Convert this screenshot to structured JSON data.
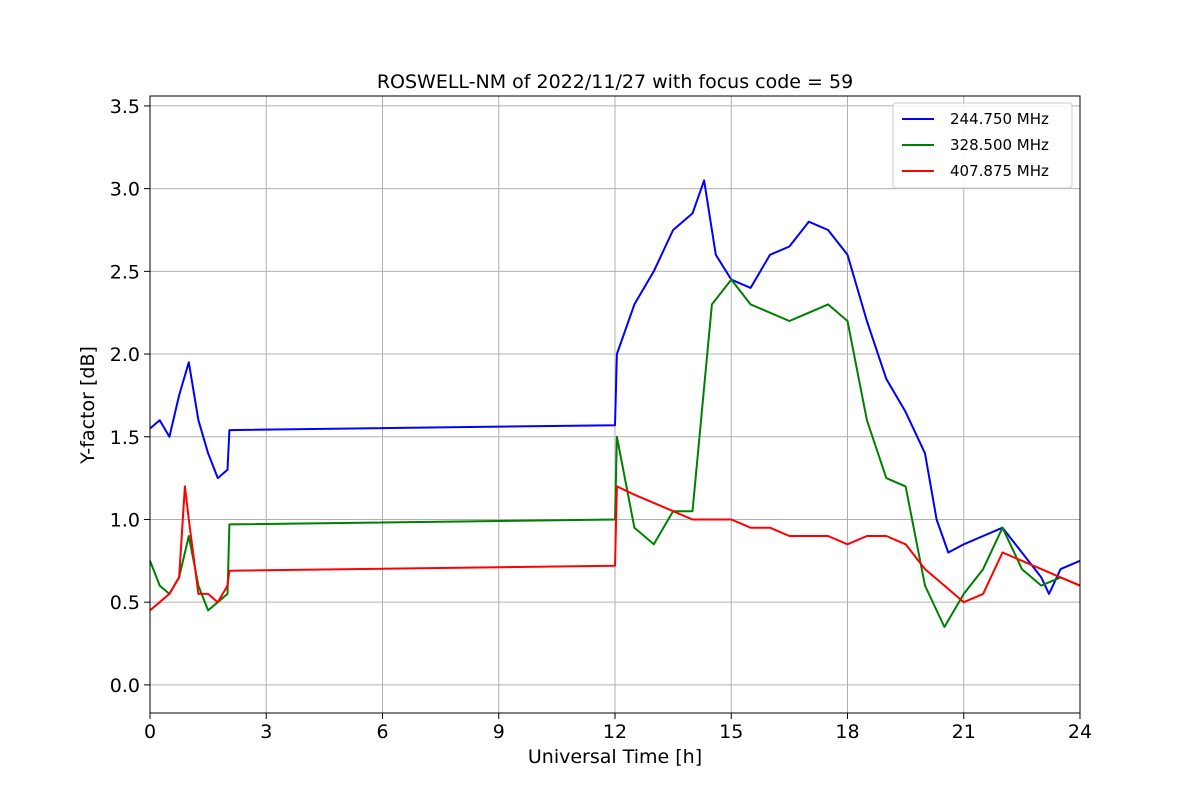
{
  "chart_data": {
    "type": "line",
    "title": "ROSWELL-NM of 2022/11/27 with focus code = 59",
    "xlabel": "Universal Time [h]",
    "ylabel": "Y-factor [dB]",
    "xlim": [
      0,
      24
    ],
    "ylim": [
      -0.17,
      3.56
    ],
    "xticks": [
      0,
      3,
      6,
      9,
      12,
      15,
      18,
      21,
      24
    ],
    "yticks": [
      0.0,
      0.5,
      1.0,
      1.5,
      2.0,
      2.5,
      3.0,
      3.5
    ],
    "xtick_labels": [
      "0",
      "3",
      "6",
      "9",
      "12",
      "15",
      "18",
      "21",
      "24"
    ],
    "ytick_labels": [
      "0.0",
      "0.5",
      "1.0",
      "1.5",
      "2.0",
      "2.5",
      "3.0",
      "3.5"
    ],
    "grid": true,
    "legend_position": "top-right",
    "series": [
      {
        "name": "244.750 MHz",
        "color": "#0000ff",
        "x": [
          0,
          0.25,
          0.5,
          0.75,
          1.0,
          1.25,
          1.5,
          1.75,
          2.0,
          2.05,
          12.0,
          12.05,
          12.5,
          13.0,
          13.5,
          14.0,
          14.3,
          14.6,
          15.0,
          15.5,
          16.0,
          16.5,
          17.0,
          17.5,
          18.0,
          18.5,
          19.0,
          19.5,
          20.0,
          20.3,
          20.6,
          21.0,
          21.5,
          22.0,
          22.5,
          23.0,
          23.2,
          23.5,
          24.0
        ],
        "y": [
          1.55,
          1.6,
          1.5,
          1.75,
          1.95,
          1.6,
          1.4,
          1.25,
          1.3,
          1.54,
          1.57,
          2.0,
          2.3,
          2.5,
          2.75,
          2.85,
          3.05,
          2.6,
          2.45,
          2.4,
          2.6,
          2.65,
          2.8,
          2.75,
          2.6,
          2.2,
          1.85,
          1.65,
          1.4,
          1.0,
          0.8,
          0.85,
          0.9,
          0.95,
          0.8,
          0.65,
          0.55,
          0.7,
          0.75
        ]
      },
      {
        "name": "328.500 MHz",
        "color": "#008000",
        "x": [
          0,
          0.25,
          0.5,
          0.75,
          1.0,
          1.25,
          1.5,
          1.75,
          2.0,
          2.05,
          12.0,
          12.05,
          12.5,
          13.0,
          13.5,
          14.0,
          14.5,
          15.0,
          15.5,
          16.0,
          16.5,
          17.0,
          17.5,
          18.0,
          18.5,
          19.0,
          19.5,
          20.0,
          20.5,
          21.0,
          21.5,
          22.0,
          22.5,
          23.0,
          23.5,
          24.0
        ],
        "y": [
          0.75,
          0.6,
          0.55,
          0.65,
          0.9,
          0.6,
          0.45,
          0.5,
          0.55,
          0.97,
          1.0,
          1.5,
          0.95,
          0.85,
          1.05,
          1.05,
          2.3,
          2.45,
          2.3,
          2.25,
          2.2,
          2.25,
          2.3,
          2.2,
          1.6,
          1.25,
          1.2,
          0.6,
          0.35,
          0.55,
          0.7,
          0.95,
          0.7,
          0.6,
          0.65,
          0.6
        ]
      },
      {
        "name": "407.875 MHz",
        "color": "#ff0000",
        "x": [
          0,
          0.25,
          0.5,
          0.75,
          0.9,
          1.0,
          1.25,
          1.5,
          1.75,
          2.0,
          2.05,
          12.0,
          12.05,
          12.5,
          13.0,
          13.5,
          14.0,
          14.5,
          15.0,
          15.5,
          16.0,
          16.5,
          17.0,
          17.5,
          18.0,
          18.5,
          19.0,
          19.5,
          20.0,
          20.5,
          21.0,
          21.5,
          22.0,
          22.5,
          23.0,
          23.5,
          24.0
        ],
        "y": [
          0.45,
          0.5,
          0.55,
          0.65,
          1.2,
          1.0,
          0.55,
          0.55,
          0.5,
          0.6,
          0.69,
          0.72,
          1.2,
          1.15,
          1.1,
          1.05,
          1.0,
          1.0,
          1.0,
          0.95,
          0.95,
          0.9,
          0.9,
          0.9,
          0.85,
          0.9,
          0.9,
          0.85,
          0.7,
          0.6,
          0.5,
          0.55,
          0.8,
          0.75,
          0.7,
          0.65,
          0.6
        ]
      }
    ]
  }
}
